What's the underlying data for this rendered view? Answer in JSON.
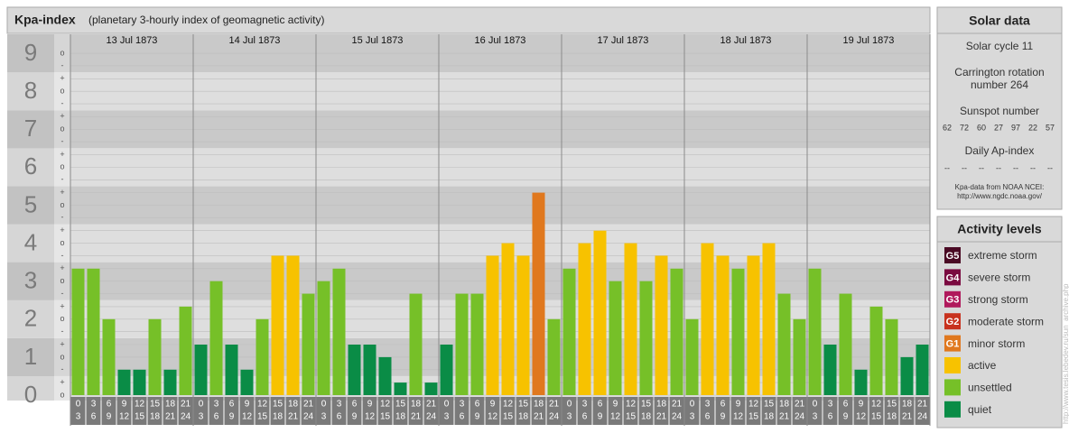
{
  "chart_data": {
    "type": "bar",
    "title": "Kpa-index",
    "subtitle": "(planetary 3-hourly index of geomagnetic activity)",
    "days": [
      "13 Jul 1873",
      "14 Jul 1873",
      "15 Jul 1873",
      "16 Jul 1873",
      "17 Jul 1873",
      "18 Jul 1873",
      "19 Jul 1873"
    ],
    "hours": [
      0,
      3,
      6,
      9,
      12,
      15,
      18,
      21,
      24
    ],
    "values": [
      3.33,
      3.33,
      2,
      0.67,
      0.67,
      2,
      0.67,
      2.33,
      1.33,
      3,
      1.33,
      0.67,
      2,
      3.67,
      3.67,
      2.67,
      3,
      3.33,
      1.33,
      1.33,
      1,
      0.33,
      2.67,
      0.33,
      1.33,
      2.67,
      2.67,
      3.67,
      4,
      3.67,
      5.33,
      2,
      3.33,
      4,
      4.33,
      3,
      4,
      3,
      3.67,
      3.33,
      2,
      4,
      3.67,
      3.33,
      3.67,
      4,
      2.67,
      2,
      3.33,
      1.33,
      2.67,
      0.67,
      2.33,
      2,
      1,
      1.33
    ],
    "colors": [
      "#76c028",
      "#76c028",
      "#76c028",
      "#0a8c46",
      "#0a8c46",
      "#76c028",
      "#0a8c46",
      "#76c028",
      "#0a8c46",
      "#76c028",
      "#0a8c46",
      "#0a8c46",
      "#76c028",
      "#f7c200",
      "#f7c200",
      "#76c028",
      "#76c028",
      "#76c028",
      "#0a8c46",
      "#0a8c46",
      "#0a8c46",
      "#0a8c46",
      "#76c028",
      "#0a8c46",
      "#0a8c46",
      "#76c028",
      "#76c028",
      "#f7c200",
      "#f7c200",
      "#f7c200",
      "#e0781e",
      "#76c028",
      "#76c028",
      "#f7c200",
      "#f7c200",
      "#76c028",
      "#f7c200",
      "#76c028",
      "#f7c200",
      "#76c028",
      "#76c028",
      "#f7c200",
      "#f7c200",
      "#76c028",
      "#f7c200",
      "#f7c200",
      "#76c028",
      "#76c028",
      "#76c028",
      "#0a8c46",
      "#76c028",
      "#0a8c46",
      "#76c028",
      "#76c028",
      "#0a8c46",
      "#0a8c46"
    ],
    "ylim": [
      0,
      9.5
    ],
    "yticks": [
      0,
      1,
      2,
      3,
      4,
      5,
      6,
      7,
      8,
      9
    ],
    "yminor_ticks": [
      {
        "value": 0,
        "label": "o"
      },
      {
        "value": 0.33,
        "label": "+"
      },
      {
        "value": 0.67,
        "label": "-"
      },
      {
        "value": 1,
        "label": "o"
      },
      {
        "value": 1.33,
        "label": "+"
      },
      {
        "value": 1.67,
        "label": "-"
      },
      {
        "value": 2,
        "label": "o"
      },
      {
        "value": 2.33,
        "label": "+"
      },
      {
        "value": 2.67,
        "label": "-"
      },
      {
        "value": 3,
        "label": "o"
      },
      {
        "value": 3.33,
        "label": "+"
      },
      {
        "value": 3.67,
        "label": "-"
      },
      {
        "value": 4,
        "label": "o"
      },
      {
        "value": 4.33,
        "label": "+"
      },
      {
        "value": 4.67,
        "label": "-"
      },
      {
        "value": 5,
        "label": "o"
      },
      {
        "value": 5.33,
        "label": "+"
      },
      {
        "value": 5.67,
        "label": "-"
      },
      {
        "value": 6,
        "label": "o"
      },
      {
        "value": 6.33,
        "label": "+"
      },
      {
        "value": 6.67,
        "label": "-"
      },
      {
        "value": 7,
        "label": "o"
      },
      {
        "value": 7.33,
        "label": "+"
      },
      {
        "value": 7.67,
        "label": "-"
      },
      {
        "value": 8,
        "label": "o"
      },
      {
        "value": 8.33,
        "label": "+"
      },
      {
        "value": 8.67,
        "label": "-"
      },
      {
        "value": 9,
        "label": "o"
      }
    ],
    "grid": true
  },
  "solar_data": {
    "title": "Solar data",
    "cycle": "Solar cycle 11",
    "carrington": [
      "Carrington rotation",
      "number 264"
    ],
    "sunspot_label": "Sunspot number",
    "sunspot_numbers": [
      62,
      72,
      60,
      27,
      97,
      22,
      57
    ],
    "ap_label": "Daily Ap-index",
    "ap_values": [
      "--",
      "--",
      "--",
      "--",
      "--",
      "--",
      "--"
    ],
    "source": [
      "Kpa-data from NOAA NCEI:",
      "http://www.ngdc.noaa.gov/"
    ]
  },
  "activity_levels": {
    "title": "Activity levels",
    "items": [
      {
        "badge": "G5",
        "label": "extreme storm",
        "color": "#4a0a24"
      },
      {
        "badge": "G4",
        "label": "severe storm",
        "color": "#7a0a40"
      },
      {
        "badge": "G3",
        "label": "strong storm",
        "color": "#b0195c"
      },
      {
        "badge": "G2",
        "label": "moderate storm",
        "color": "#c8321e"
      },
      {
        "badge": "G1",
        "label": "minor storm",
        "color": "#e0781e"
      },
      {
        "label": "active",
        "color": "#f7c200"
      },
      {
        "label": "unsettled",
        "color": "#76c028"
      },
      {
        "label": "quiet",
        "color": "#0a8c46"
      }
    ]
  },
  "watermark": "http://www.tesis.lebedev.ru/sun_archive.php"
}
